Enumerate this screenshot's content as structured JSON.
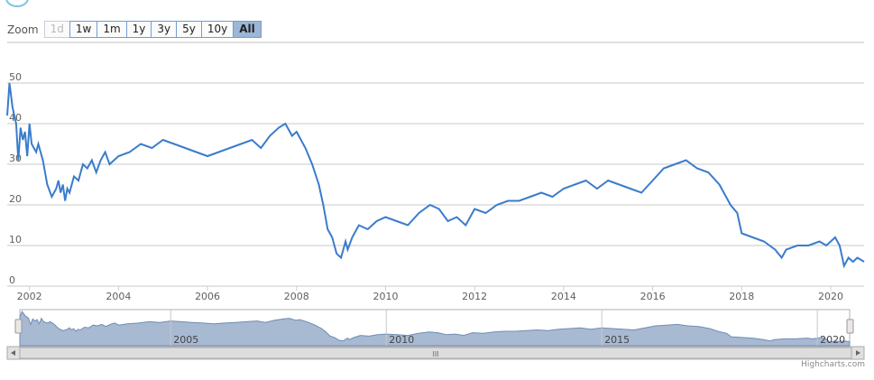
{
  "zoom": {
    "label": "Zoom",
    "buttons": [
      {
        "label": "1d",
        "state": "disabled"
      },
      {
        "label": "1w",
        "state": "normal"
      },
      {
        "label": "1m",
        "state": "normal"
      },
      {
        "label": "1y",
        "state": "normal"
      },
      {
        "label": "3y",
        "state": "normal"
      },
      {
        "label": "5y",
        "state": "normal"
      },
      {
        "label": "10y",
        "state": "normal"
      },
      {
        "label": "All",
        "state": "active"
      }
    ]
  },
  "chart_data": {
    "type": "line",
    "xlim": [
      2001.5,
      2020.75
    ],
    "ylim": [
      0,
      50
    ],
    "y_ticks": [
      0,
      10,
      20,
      30,
      40,
      50
    ],
    "x_ticks": [
      2002,
      2004,
      2006,
      2008,
      2010,
      2012,
      2014,
      2016,
      2018,
      2020
    ],
    "grid": true,
    "series": [
      {
        "color": "#3a7ccc",
        "x": [
          2001.5,
          2001.55,
          2001.62,
          2001.7,
          2001.75,
          2001.8,
          2001.85,
          2001.9,
          2001.95,
          2002.0,
          2002.05,
          2002.1,
          2002.15,
          2002.2,
          2002.3,
          2002.4,
          2002.5,
          2002.6,
          2002.65,
          2002.7,
          2002.75,
          2002.8,
          2002.85,
          2002.9,
          2003.0,
          2003.1,
          2003.2,
          2003.3,
          2003.4,
          2003.5,
          2003.6,
          2003.7,
          2003.8,
          2003.9,
          2004.0,
          2004.25,
          2004.5,
          2004.75,
          2005.0,
          2005.25,
          2005.5,
          2005.75,
          2006.0,
          2006.25,
          2006.5,
          2006.75,
          2007.0,
          2007.2,
          2007.4,
          2007.6,
          2007.75,
          2007.9,
          2008.0,
          2008.2,
          2008.35,
          2008.5,
          2008.6,
          2008.7,
          2008.8,
          2008.9,
          2009.0,
          2009.1,
          2009.15,
          2009.25,
          2009.4,
          2009.6,
          2009.8,
          2010.0,
          2010.25,
          2010.5,
          2010.75,
          2011.0,
          2011.2,
          2011.4,
          2011.6,
          2011.8,
          2012.0,
          2012.25,
          2012.5,
          2012.75,
          2013.0,
          2013.25,
          2013.5,
          2013.75,
          2014.0,
          2014.25,
          2014.5,
          2014.75,
          2015.0,
          2015.25,
          2015.5,
          2015.75,
          2016.0,
          2016.25,
          2016.5,
          2016.75,
          2017.0,
          2017.25,
          2017.5,
          2017.75,
          2017.9,
          2018.0,
          2018.25,
          2018.5,
          2018.75,
          2018.9,
          2019.0,
          2019.25,
          2019.5,
          2019.75,
          2019.9,
          2020.0,
          2020.1,
          2020.2,
          2020.3,
          2020.4,
          2020.5,
          2020.6,
          2020.75
        ],
        "y": [
          42,
          50,
          44,
          40,
          31,
          39,
          36,
          38,
          32,
          40,
          35,
          34,
          33,
          35,
          31,
          25,
          22,
          24,
          26,
          23,
          25,
          21,
          24,
          23,
          27,
          26,
          30,
          29,
          31,
          28,
          31,
          33,
          30,
          31,
          32,
          33,
          35,
          34,
          36,
          35,
          34,
          33,
          32,
          33,
          34,
          35,
          36,
          34,
          37,
          39,
          40,
          37,
          38,
          34,
          30,
          25,
          20,
          14,
          12,
          8,
          7,
          11,
          9,
          12,
          15,
          14,
          16,
          17,
          16,
          15,
          18,
          20,
          19,
          16,
          17,
          15,
          19,
          18,
          20,
          21,
          21,
          22,
          23,
          22,
          24,
          25,
          26,
          24,
          26,
          25,
          24,
          23,
          26,
          29,
          30,
          31,
          29,
          28,
          25,
          20,
          18,
          13,
          12,
          11,
          9,
          7,
          9,
          10,
          10,
          11,
          10,
          11,
          12,
          10,
          5,
          7,
          6,
          7,
          6
        ]
      }
    ],
    "navigator": {
      "ticks": [
        "2005",
        "2010",
        "2015",
        "2020"
      ]
    },
    "scrollbar_grip": "III"
  },
  "credits": "Highcharts.com"
}
